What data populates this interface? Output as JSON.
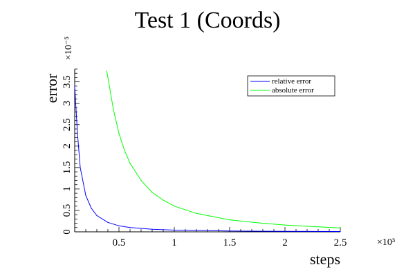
{
  "chart_data": {
    "type": "line",
    "title": "Test 1 (Coords)",
    "xlabel": "steps",
    "ylabel": "error",
    "x_multiplier": "×10³",
    "y_multiplier": "×10⁻⁵",
    "xlim": [
      0.1,
      2.5
    ],
    "ylim": [
      0,
      3.8
    ],
    "x_ticks": [
      "0.5",
      "1",
      "1.5",
      "2",
      "2.5"
    ],
    "x_tick_values": [
      0.5,
      1,
      1.5,
      2,
      2.5
    ],
    "y_ticks": [
      "0",
      "0.5",
      "1",
      "1.5",
      "2",
      "2.5",
      "3",
      "3.5"
    ],
    "y_tick_values": [
      0,
      0.5,
      1,
      1.5,
      2,
      2.5,
      3,
      3.5
    ],
    "grid": false,
    "legend_position": "top-right",
    "series": [
      {
        "name": "relative error",
        "color": "#0000ff",
        "x": [
          0.1,
          0.125,
          0.15,
          0.2,
          0.25,
          0.3,
          0.4,
          0.5,
          0.6,
          0.8,
          1.0,
          1.5,
          2.0,
          2.5
        ],
        "y": [
          3.4,
          2.3,
          1.5,
          0.85,
          0.55,
          0.38,
          0.22,
          0.14,
          0.1,
          0.06,
          0.04,
          0.02,
          0.012,
          0.008
        ]
      },
      {
        "name": "absolute error",
        "color": "#00ff00",
        "x": [
          0.39,
          0.45,
          0.5,
          0.55,
          0.6,
          0.7,
          0.8,
          0.9,
          1.0,
          1.2,
          1.5,
          1.8,
          2.0,
          2.2,
          2.5
        ],
        "y": [
          3.75,
          2.85,
          2.3,
          1.9,
          1.6,
          1.2,
          0.92,
          0.74,
          0.6,
          0.43,
          0.28,
          0.2,
          0.16,
          0.13,
          0.09
        ]
      }
    ]
  }
}
